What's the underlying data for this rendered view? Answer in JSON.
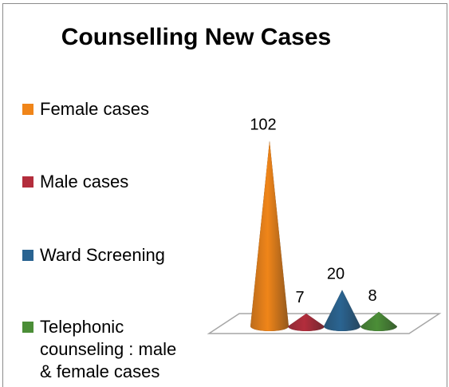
{
  "chart_data": {
    "type": "cone",
    "title": "Counselling New Cases",
    "categories": [
      "Female cases",
      "Male cases",
      "Ward Screening",
      "Telephonic counseling : male & female cases"
    ],
    "values": [
      102,
      7,
      20,
      8
    ],
    "colors": [
      "#f08519",
      "#b32d3c",
      "#2a6491",
      "#4b8e37"
    ]
  }
}
